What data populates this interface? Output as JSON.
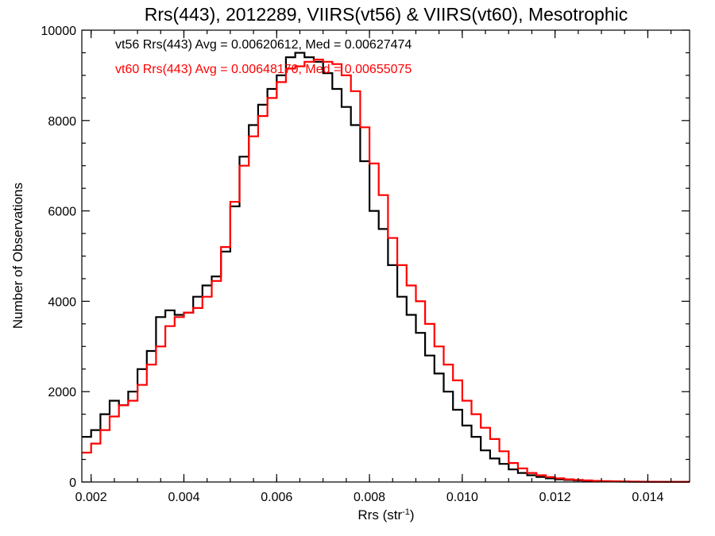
{
  "chart_data": {
    "type": "line",
    "title": "Rrs(443), 2012289, VIIRS(vt56) & VIIRS(vt60), Mesotrophic",
    "xlabel": "Rrs (str",
    "xlabel_sup": "-1",
    "xlabel_end": ")",
    "ylabel": "Number of Observations",
    "xlim": [
      0.0018,
      0.0149
    ],
    "ylim": [
      0,
      10000
    ],
    "grid": false,
    "step": true,
    "xticks": [
      0.002,
      0.004,
      0.006,
      0.008,
      0.01,
      0.012,
      0.014
    ],
    "xtick_labels": [
      "0.002",
      "0.004",
      "0.006",
      "0.008",
      "0.010",
      "0.012",
      "0.014"
    ],
    "yticks": [
      0,
      2000,
      4000,
      6000,
      8000,
      10000
    ],
    "ytick_labels": [
      "0",
      "2000",
      "4000",
      "6000",
      "8000",
      "10000"
    ],
    "annotations": [
      {
        "text": "vt56 Rrs(443) Avg = 0.00620612, Med = 0.00627474",
        "color": "#000000"
      },
      {
        "text": "vt60 Rrs(443) Avg = 0.00648170, Med = 0.00655075",
        "color": "#ff0000"
      }
    ],
    "series": [
      {
        "color": "#000000",
        "x": [
          0.0018,
          0.002,
          0.0022,
          0.0024,
          0.0026,
          0.0028,
          0.003,
          0.0032,
          0.0034,
          0.0036,
          0.0038,
          0.004,
          0.0042,
          0.0044,
          0.0046,
          0.0048,
          0.005,
          0.0052,
          0.0054,
          0.0056,
          0.0058,
          0.006,
          0.0062,
          0.0064,
          0.0066,
          0.0068,
          0.007,
          0.0072,
          0.0074,
          0.0076,
          0.0078,
          0.008,
          0.0082,
          0.0084,
          0.0086,
          0.0088,
          0.009,
          0.0092,
          0.0094,
          0.0096,
          0.0098,
          0.01,
          0.0102,
          0.0104,
          0.0106,
          0.0108,
          0.011,
          0.0112,
          0.0114,
          0.0116,
          0.0118,
          0.012,
          0.0122,
          0.0124,
          0.0126,
          0.0128,
          0.013,
          0.0132,
          0.0134,
          0.0136,
          0.0138,
          0.014,
          0.0142,
          0.0144,
          0.0146,
          0.0148
        ],
        "y": [
          1000,
          1150,
          1500,
          1800,
          1700,
          2000,
          2500,
          2900,
          3650,
          3800,
          3700,
          3750,
          4100,
          4350,
          4550,
          5100,
          6100,
          7200,
          7900,
          8350,
          8700,
          9000,
          9400,
          9500,
          9400,
          9300,
          9050,
          8700,
          8300,
          7900,
          7100,
          6000,
          5600,
          4800,
          4100,
          3700,
          3300,
          2800,
          2400,
          2000,
          1600,
          1250,
          1000,
          700,
          520,
          400,
          280,
          200,
          150,
          110,
          80,
          60,
          45,
          35,
          25,
          20,
          15,
          10,
          8,
          6,
          5,
          4,
          3,
          2,
          2,
          1
        ]
      },
      {
        "color": "#ff0000",
        "x": [
          0.0018,
          0.002,
          0.0022,
          0.0024,
          0.0026,
          0.0028,
          0.003,
          0.0032,
          0.0034,
          0.0036,
          0.0038,
          0.004,
          0.0042,
          0.0044,
          0.0046,
          0.0048,
          0.005,
          0.0052,
          0.0054,
          0.0056,
          0.0058,
          0.006,
          0.0062,
          0.0064,
          0.0066,
          0.0068,
          0.007,
          0.0072,
          0.0074,
          0.0076,
          0.0078,
          0.008,
          0.0082,
          0.0084,
          0.0086,
          0.0088,
          0.009,
          0.0092,
          0.0094,
          0.0096,
          0.0098,
          0.01,
          0.0102,
          0.0104,
          0.0106,
          0.0108,
          0.011,
          0.0112,
          0.0114,
          0.0116,
          0.0118,
          0.012,
          0.0122,
          0.0124,
          0.0126,
          0.0128,
          0.013,
          0.0132,
          0.0134,
          0.0136,
          0.0138,
          0.014,
          0.0142,
          0.0144,
          0.0146,
          0.0148
        ],
        "y": [
          650,
          850,
          1150,
          1450,
          1700,
          1800,
          2150,
          2600,
          3000,
          3450,
          3650,
          3750,
          3850,
          4100,
          4450,
          5200,
          6200,
          7000,
          7650,
          8100,
          8500,
          8850,
          9150,
          9200,
          9300,
          9350,
          9300,
          9250,
          9000,
          8650,
          7850,
          7050,
          6350,
          5400,
          4800,
          4350,
          4000,
          3500,
          3000,
          2600,
          2250,
          1800,
          1500,
          1200,
          950,
          680,
          420,
          300,
          200,
          150,
          110,
          80,
          60,
          45,
          35,
          25,
          20,
          15,
          10,
          8,
          6,
          5,
          4,
          3,
          2,
          1
        ]
      }
    ]
  }
}
